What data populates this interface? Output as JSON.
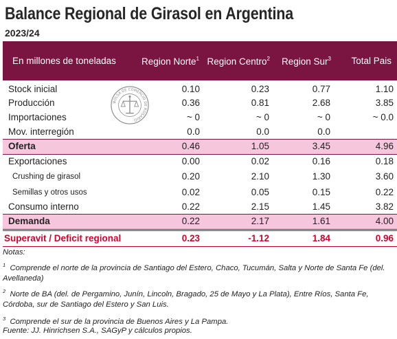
{
  "title": "Balance Regional de Girasol en Argentina",
  "subtitle": "2023/24",
  "header": {
    "label": "En millones de toneladas",
    "columns": [
      {
        "name": "Region Norte",
        "note": "1"
      },
      {
        "name": "Region Centro",
        "note": "2"
      },
      {
        "name": "Region Sur",
        "note": "3"
      },
      {
        "name": "Total Pais",
        "note": ""
      }
    ]
  },
  "rows": [
    {
      "label": "Stock inicial",
      "values": [
        "0.10",
        "0.23",
        "0.77",
        "1.10"
      ]
    },
    {
      "label": "Producción",
      "values": [
        "0.36",
        "0.81",
        "2.68",
        "3.85"
      ]
    },
    {
      "label": "Importaciones",
      "values": [
        "~ 0",
        "~ 0",
        "~ 0",
        "~ 0.0"
      ]
    },
    {
      "label": "Mov. interregión",
      "values": [
        "0.0",
        "0.0",
        "0.0",
        ""
      ]
    },
    {
      "label": "Oferta",
      "values": [
        "0.46",
        "1.05",
        "3.45",
        "4.96"
      ]
    },
    {
      "label": "Exportaciones",
      "values": [
        "0.00",
        "0.02",
        "0.16",
        "0.18"
      ]
    },
    {
      "label": "Crushing de girasol",
      "values": [
        "0.20",
        "2.10",
        "1.30",
        "3.60"
      ]
    },
    {
      "label": "Semillas y otros usos",
      "values": [
        "0.02",
        "0.05",
        "0.15",
        "0.22"
      ]
    },
    {
      "label": "Consumo interno",
      "values": [
        "0.22",
        "2.15",
        "1.45",
        "3.82"
      ]
    },
    {
      "label": "Demanda",
      "values": [
        "0.22",
        "2.17",
        "1.61",
        "4.00"
      ]
    }
  ],
  "surplus": {
    "label": "Superavit / Deficit regional",
    "values": [
      "0.23",
      "-1.12",
      "1.84",
      "0.96"
    ]
  },
  "seal_text": "BOLSA DE COMERCIO DE ROSARIO",
  "notes": {
    "heading": "Notas:",
    "n1_num": "1",
    "n1": "Comprende el norte de la provincia de Santiago del Estero, Chaco, Tucumán, Salta y Norte de Santa Fe (del. Avellaneda)",
    "n2_num": "2",
    "n2": "Norte de BA (del. de Pergamino, Junín, Lincoln, Bragado, 25 de Mayo y La Plata), Entre Ríos, Santa Fe, Córdoba, sur de Santiago del Estero y San Luis.",
    "n3_num": "3",
    "n3": "Comprende el sur de la provincia de Buenos Aires y La Pampa.",
    "source": "Fuente: JJ. Hinrichsen S.A., SAGyP y cálculos propios."
  },
  "colors": {
    "header_bg": "#7a1541",
    "band_bg": "#f6c6dd",
    "surplus_text": "#d8002a"
  }
}
